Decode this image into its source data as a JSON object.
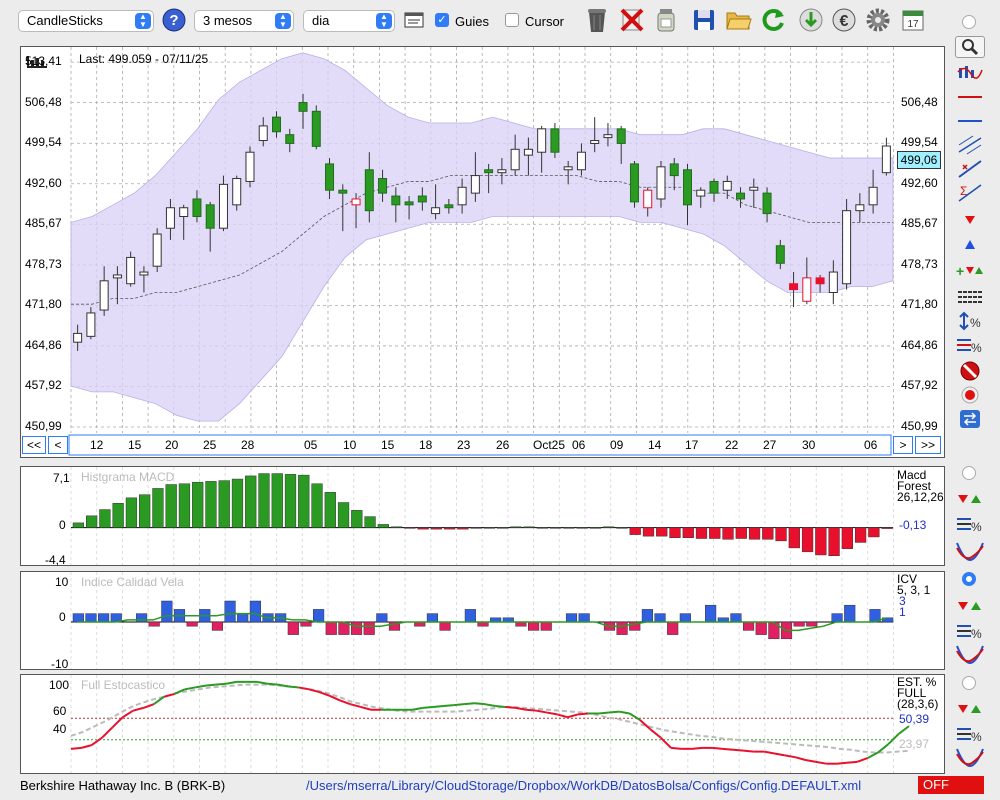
{
  "toolbar": {
    "chart_type": "CandleSticks",
    "period": "3 mesos",
    "interval": "dia",
    "guides_label": "Guies",
    "guides_checked": true,
    "cursor_label": "Cursor",
    "cursor_checked": false,
    "calendar_day": "17",
    "help_label": "?"
  },
  "main_chart": {
    "last_label": "Last: 499.059 - 07/11/25",
    "current_price": "499,06",
    "y_ticks": [
      "513,41",
      "506,48",
      "499,54",
      "492,60",
      "485,67",
      "478,73",
      "471,80",
      "464,86",
      "457,92",
      "450,99"
    ],
    "x_ticks": [
      "12",
      "15",
      "20",
      "25",
      "28",
      "05",
      "10",
      "15",
      "18",
      "23",
      "26",
      "Oct25",
      "06",
      "09",
      "14",
      "17",
      "22",
      "27",
      "30",
      "06"
    ],
    "nav_buttons": [
      "<<",
      "<",
      ">",
      ">>"
    ]
  },
  "macd": {
    "title": "Histgrama MACD",
    "name_line1": "Macd",
    "name_line2": "Forest",
    "params": "26,12,26",
    "value": "-0,13",
    "y_top": "7,1",
    "y_zero": "0",
    "y_bottom": "-4,4"
  },
  "icv": {
    "title": "Indice Calidad Vela",
    "name": "ICV",
    "params": "5, 3, 1",
    "value1": "3",
    "value2": "1",
    "y_top": "10",
    "y_zero": "0",
    "y_bottom": "-10"
  },
  "stoch": {
    "title": "Full Estocastico",
    "name_line1": "EST. %",
    "name_line2": "FULL",
    "params": "(28,3,6)",
    "value1": "50,39",
    "value2": "23,97",
    "y_ticks": [
      "100",
      "60",
      "40",
      "0"
    ]
  },
  "footer": {
    "instrument": "Berkshire Hathaway Inc. B (BRK-B)",
    "path": "/Users/mserra/Library/CloudStorage/Dropbox/WorkDB/DatosBolsa/Configs/Config.DEFAULT.xml",
    "status": "OFF"
  },
  "colors": {
    "up": "#2a9a22",
    "down": "#e8102c",
    "band": "#d8d0f6",
    "stoch_fast": "#2a9a22",
    "stoch_slow": "#bbbbbb",
    "value_blue": "#2030c8"
  },
  "chart_data": {
    "type": "candlestick",
    "candles": [
      {
        "o": 465.5,
        "h": 468.5,
        "l": 464.0,
        "c": 467.0
      },
      {
        "o": 466.5,
        "h": 471.5,
        "l": 466.0,
        "c": 470.5
      },
      {
        "o": 471.0,
        "h": 478.5,
        "l": 470.0,
        "c": 476.0
      },
      {
        "o": 476.5,
        "h": 478.5,
        "l": 472.0,
        "c": 477.0
      },
      {
        "o": 475.5,
        "h": 481.0,
        "l": 475.0,
        "c": 480.0
      },
      {
        "o": 477.0,
        "h": 478.5,
        "l": 474.0,
        "c": 477.5
      },
      {
        "o": 478.5,
        "h": 485.0,
        "l": 477.5,
        "c": 484.0
      },
      {
        "o": 485.0,
        "h": 490.0,
        "l": 483.0,
        "c": 488.5
      },
      {
        "o": 487.0,
        "h": 489.0,
        "l": 483.0,
        "c": 488.5
      },
      {
        "o": 490.0,
        "h": 491.5,
        "l": 486.0,
        "c": 487.0
      },
      {
        "o": 489.0,
        "h": 489.5,
        "l": 481.0,
        "c": 485.0
      },
      {
        "o": 485.0,
        "h": 494.0,
        "l": 484.5,
        "c": 492.5
      },
      {
        "o": 489.0,
        "h": 494.0,
        "l": 488.0,
        "c": 493.5
      },
      {
        "o": 493.0,
        "h": 499.0,
        "l": 492.0,
        "c": 498.0
      },
      {
        "o": 500.0,
        "h": 504.0,
        "l": 499.0,
        "c": 502.5
      },
      {
        "o": 504.0,
        "h": 505.0,
        "l": 500.5,
        "c": 501.5
      },
      {
        "o": 501.0,
        "h": 502.0,
        "l": 498.0,
        "c": 499.5
      },
      {
        "o": 506.5,
        "h": 508.0,
        "l": 502.0,
        "c": 505.0
      },
      {
        "o": 505.0,
        "h": 506.0,
        "l": 498.5,
        "c": 499.0
      },
      {
        "o": 496.0,
        "h": 497.0,
        "l": 490.0,
        "c": 491.5
      },
      {
        "o": 491.5,
        "h": 492.5,
        "l": 484.5,
        "c": 491.0
      },
      {
        "o": 489.0,
        "h": 491.0,
        "l": 485.0,
        "c": 490.0
      },
      {
        "o": 495.0,
        "h": 498.0,
        "l": 486.0,
        "c": 488.0
      },
      {
        "o": 493.5,
        "h": 495.0,
        "l": 489.5,
        "c": 491.0
      },
      {
        "o": 490.5,
        "h": 492.0,
        "l": 486.0,
        "c": 489.0
      },
      {
        "o": 489.5,
        "h": 490.5,
        "l": 486.5,
        "c": 489.0
      },
      {
        "o": 490.5,
        "h": 492.0,
        "l": 488.0,
        "c": 489.5
      },
      {
        "o": 487.5,
        "h": 492.5,
        "l": 486.5,
        "c": 488.5
      },
      {
        "o": 489.0,
        "h": 490.0,
        "l": 487.5,
        "c": 488.5
      },
      {
        "o": 489.0,
        "h": 493.5,
        "l": 487.5,
        "c": 492.0
      },
      {
        "o": 491.0,
        "h": 498.0,
        "l": 489.5,
        "c": 494.0
      },
      {
        "o": 495.0,
        "h": 496.0,
        "l": 491.0,
        "c": 494.5
      },
      {
        "o": 494.5,
        "h": 497.0,
        "l": 492.5,
        "c": 495.0
      },
      {
        "o": 495.0,
        "h": 501.0,
        "l": 494.0,
        "c": 498.5
      },
      {
        "o": 497.5,
        "h": 500.5,
        "l": 494.0,
        "c": 498.5
      },
      {
        "o": 498.0,
        "h": 502.5,
        "l": 494.5,
        "c": 502.0
      },
      {
        "o": 502.0,
        "h": 503.0,
        "l": 497.0,
        "c": 498.0
      },
      {
        "o": 495.0,
        "h": 496.5,
        "l": 492.5,
        "c": 495.5
      },
      {
        "o": 495.0,
        "h": 499.5,
        "l": 494.0,
        "c": 498.0
      },
      {
        "o": 499.5,
        "h": 504.0,
        "l": 498.0,
        "c": 500.0
      },
      {
        "o": 500.5,
        "h": 503.0,
        "l": 499.0,
        "c": 501.0
      },
      {
        "o": 502.0,
        "h": 502.5,
        "l": 496.0,
        "c": 499.5
      },
      {
        "o": 496.0,
        "h": 496.5,
        "l": 488.5,
        "c": 489.5
      },
      {
        "o": 488.5,
        "h": 492.0,
        "l": 487.0,
        "c": 491.5
      },
      {
        "o": 490.0,
        "h": 496.5,
        "l": 488.5,
        "c": 495.5
      },
      {
        "o": 496.0,
        "h": 497.0,
        "l": 491.5,
        "c": 494.0
      },
      {
        "o": 495.0,
        "h": 496.0,
        "l": 485.5,
        "c": 489.0
      },
      {
        "o": 490.5,
        "h": 492.0,
        "l": 488.5,
        "c": 491.5
      },
      {
        "o": 493.0,
        "h": 493.5,
        "l": 489.5,
        "c": 491.0
      },
      {
        "o": 491.5,
        "h": 494.0,
        "l": 490.0,
        "c": 493.0
      },
      {
        "o": 491.0,
        "h": 492.0,
        "l": 488.5,
        "c": 490.0
      },
      {
        "o": 491.5,
        "h": 493.5,
        "l": 488.5,
        "c": 492.0
      },
      {
        "o": 491.0,
        "h": 492.0,
        "l": 486.0,
        "c": 487.5
      },
      {
        "o": 482.0,
        "h": 483.0,
        "l": 478.0,
        "c": 479.0
      },
      {
        "o": 475.5,
        "h": 477.5,
        "l": 471.5,
        "c": 474.5
      },
      {
        "o": 472.5,
        "h": 480.0,
        "l": 472.0,
        "c": 476.5
      },
      {
        "o": 476.5,
        "h": 477.0,
        "l": 474.0,
        "c": 475.5
      },
      {
        "o": 474.0,
        "h": 479.5,
        "l": 472.0,
        "c": 477.5
      },
      {
        "o": 475.5,
        "h": 490.0,
        "l": 474.5,
        "c": 488.0
      },
      {
        "o": 488.0,
        "h": 491.0,
        "l": 486.0,
        "c": 489.0
      },
      {
        "o": 489.0,
        "h": 495.0,
        "l": 487.5,
        "c": 492.0
      },
      {
        "o": 494.5,
        "h": 500.5,
        "l": 494.0,
        "c": 499.06
      }
    ],
    "bollinger": {
      "upper": [
        486,
        487,
        489,
        491,
        494,
        498,
        502,
        507,
        510,
        512,
        514,
        515,
        514,
        512,
        509,
        506,
        504,
        503,
        503,
        503,
        504,
        503,
        502,
        502,
        502,
        502,
        502,
        501,
        501,
        501,
        502,
        502,
        501,
        500,
        499,
        498,
        497,
        497,
        497,
        497
      ],
      "middle": [
        472,
        472,
        473,
        473,
        474,
        474,
        475,
        476,
        477,
        479,
        481,
        484,
        487,
        489,
        491,
        492,
        493,
        493,
        494,
        494,
        494,
        494,
        494,
        494,
        494,
        493,
        493,
        492,
        492,
        492,
        491,
        491,
        489,
        488,
        487,
        486,
        486,
        486,
        486,
        486
      ],
      "lower": [
        458,
        457,
        457,
        456,
        455,
        453,
        452,
        452,
        455,
        459,
        463,
        469,
        475,
        480,
        483,
        484,
        485,
        486,
        486,
        486,
        487,
        487,
        487,
        487,
        487,
        487,
        487,
        486,
        486,
        485,
        484,
        482,
        479,
        476,
        474,
        474,
        474,
        475,
        475,
        476
      ]
    },
    "macd_hist": [
      0.6,
      1.5,
      2.3,
      3.1,
      3.8,
      4.2,
      5.0,
      5.5,
      5.6,
      5.8,
      5.9,
      6.0,
      6.2,
      6.6,
      6.9,
      6.9,
      6.8,
      6.7,
      5.6,
      4.5,
      3.2,
      2.2,
      1.4,
      0.4,
      0.1,
      -0.1,
      -0.2,
      -0.2,
      -0.2,
      -0.2,
      -0.1,
      0,
      0,
      0.1,
      0.1,
      0,
      0,
      0,
      0,
      0,
      0.1,
      0,
      -0.9,
      -1.1,
      -1.1,
      -1.3,
      -1.3,
      -1.4,
      -1.4,
      -1.5,
      -1.4,
      -1.5,
      -1.5,
      -1.7,
      -2.6,
      -3.1,
      -3.5,
      -3.6,
      -2.7,
      -1.9,
      -1.2,
      -0.13
    ],
    "icv": [
      2,
      2,
      2,
      2,
      0,
      2,
      -1,
      5,
      3,
      -1,
      3,
      -2,
      5,
      2,
      5,
      2,
      2,
      -3,
      -1,
      3,
      -3,
      -3,
      -3,
      -3,
      2,
      -2,
      0,
      -1,
      2,
      -2,
      0,
      3,
      -1,
      1,
      1,
      -1,
      -2,
      -2,
      0,
      2,
      2,
      0,
      -2,
      -3,
      -2,
      3,
      2,
      -3,
      2,
      0,
      4,
      1,
      2,
      -2,
      -3,
      -4,
      -4,
      -1,
      -1,
      0,
      2,
      4,
      0,
      3,
      1
    ],
    "stoch_fast": [
      26,
      27,
      30,
      38,
      49,
      60,
      67,
      70,
      74,
      82,
      85,
      90,
      92,
      94,
      95,
      96,
      98,
      98,
      98,
      96,
      95,
      93,
      92,
      90,
      87,
      83,
      78,
      74,
      71,
      68,
      68,
      68,
      68,
      68,
      70,
      71,
      72,
      73,
      74,
      75,
      74,
      72,
      71,
      70,
      68,
      67,
      65,
      63,
      60,
      63,
      64,
      64,
      65,
      66,
      64,
      57,
      47,
      38,
      27,
      26,
      26,
      27,
      27,
      26,
      25,
      24,
      23,
      23,
      21,
      19,
      17,
      14,
      12,
      10,
      10,
      11,
      12,
      16,
      22,
      31,
      42,
      50.39
    ],
    "stoch_slow": [
      40,
      44,
      50,
      56,
      63,
      70,
      75,
      79,
      82,
      86,
      88,
      90,
      92,
      93,
      94,
      95,
      95,
      95,
      94,
      93,
      91,
      89,
      86,
      82,
      77,
      74,
      71,
      69,
      67,
      66,
      66,
      66,
      66,
      66,
      67,
      68,
      69,
      71,
      71,
      70,
      69,
      68,
      67,
      66,
      65,
      63,
      60,
      58,
      55,
      52,
      49,
      46,
      44,
      42,
      40,
      39,
      37,
      36,
      35,
      34,
      33,
      32,
      31,
      30,
      29,
      28,
      26,
      25,
      23,
      22,
      22,
      23,
      23.97
    ],
    "y_range_main": [
      450.99,
      516.0
    ],
    "macd_range": [
      -4.4,
      7.1
    ],
    "icv_range": [
      -10,
      10
    ],
    "stoch_range": [
      0,
      100
    ]
  }
}
